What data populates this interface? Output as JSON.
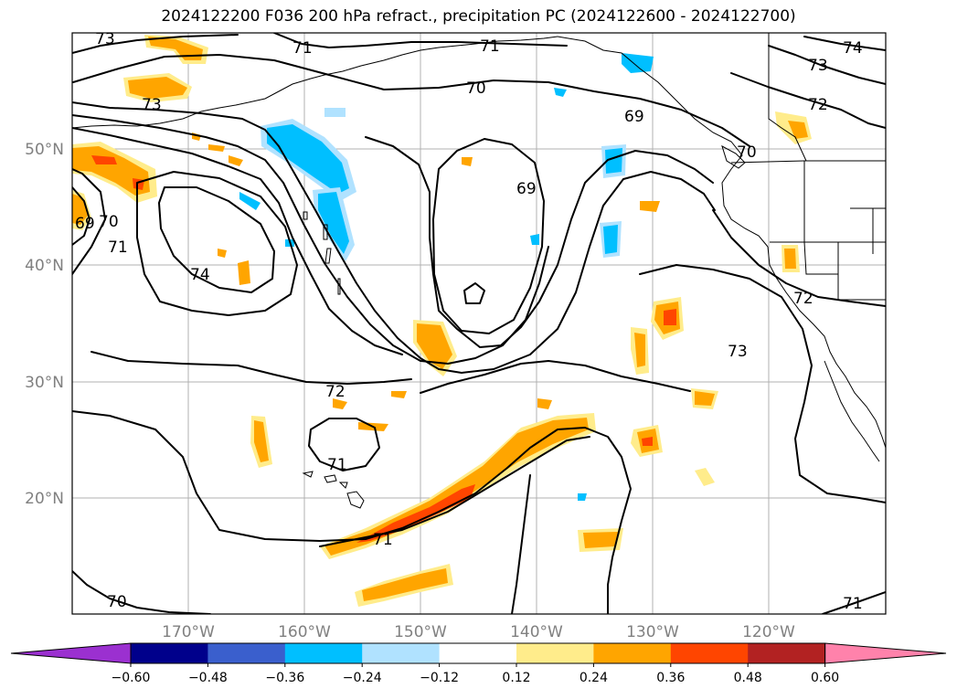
{
  "title": "2024122200 F036 200 hPa refract., precipitation PC (2024122600 - 2024122700)",
  "axes": {
    "lat_labels": [
      "50°N",
      "40°N",
      "30°N",
      "20°N"
    ],
    "lon_labels": [
      "170°W",
      "160°W",
      "150°W",
      "140°W",
      "130°W",
      "120°W"
    ]
  },
  "colorbar": {
    "colors": [
      "#9b30d0",
      "#00008b",
      "#3a5fcd",
      "#00bfff",
      "#b0e2ff",
      "#ffffff",
      "#ffec8b",
      "#ffa500",
      "#ff4500",
      "#b22222",
      "#ff82ab"
    ],
    "tick_labels": [
      "−0.60",
      "−0.48",
      "−0.36",
      "−0.24",
      "−0.12",
      "0.12",
      "0.24",
      "0.36",
      "0.48",
      "0.60"
    ]
  },
  "contour_labels": [
    "73",
    "71",
    "71",
    "70",
    "73",
    "69",
    "70",
    "69",
    "69",
    "70",
    "71",
    "74",
    "72",
    "71",
    "71",
    "70",
    "73",
    "74",
    "72",
    "72",
    "73",
    "71"
  ]
}
